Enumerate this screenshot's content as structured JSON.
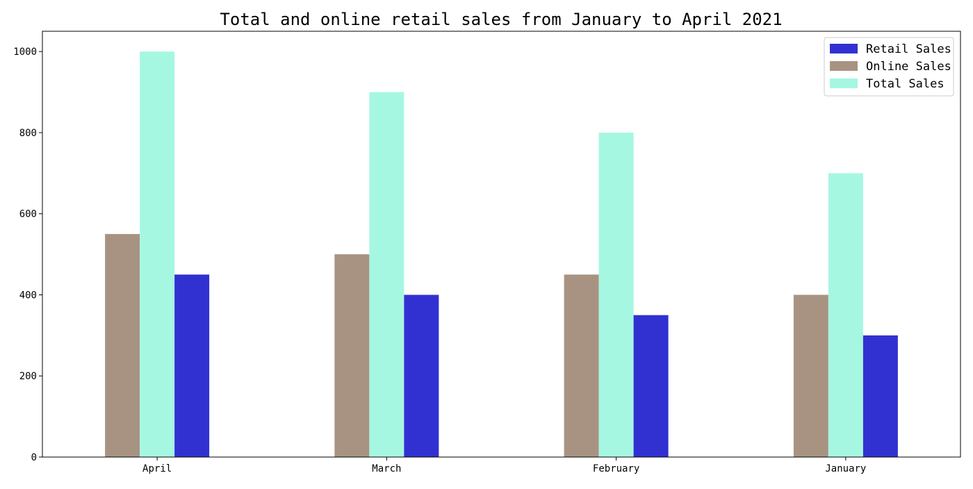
{
  "chart_data": {
    "type": "bar",
    "title": "Total and online retail sales from January to April 2021",
    "xlabel": "",
    "ylabel": "",
    "categories": [
      "April",
      "March",
      "February",
      "January"
    ],
    "ylim": [
      0,
      1050
    ],
    "yticks": [
      0,
      200,
      400,
      600,
      800,
      1000
    ],
    "grid": false,
    "legend_position": "top-right",
    "series": [
      {
        "name": "Retail Sales",
        "color": "#3131d1",
        "values": [
          450,
          400,
          350,
          300
        ]
      },
      {
        "name": "Online Sales",
        "color": "#a89382",
        "values": [
          550,
          500,
          450,
          400
        ]
      },
      {
        "name": "Total Sales",
        "color": "#a6f7e2",
        "values": [
          1000,
          900,
          800,
          700
        ]
      }
    ]
  }
}
